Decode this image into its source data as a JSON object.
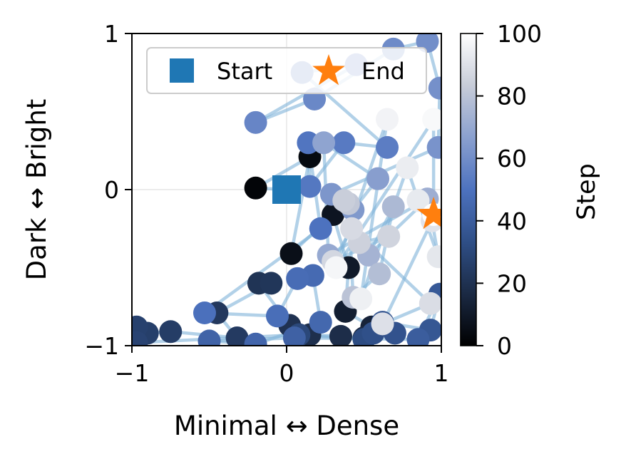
{
  "chart_data": {
    "type": "scatter",
    "xlabel": "Minimal ↔ Dense",
    "ylabel": "Dark ↔ Bright",
    "xlim": [
      -1,
      1
    ],
    "ylim": [
      -1,
      1
    ],
    "xticks": [
      "−1",
      "0",
      "1"
    ],
    "yticks": [
      "−1",
      "0",
      "1"
    ],
    "grid": true,
    "legend": {
      "position": "top-right",
      "entries": [
        {
          "label": "Start",
          "marker": "square",
          "color": "#1f77b4"
        },
        {
          "label": "End",
          "marker": "star",
          "color": "#ff7f0e"
        }
      ]
    },
    "colorbar": {
      "label": "Step",
      "range": [
        0,
        100
      ],
      "ticks": [
        "0",
        "20",
        "40",
        "60",
        "80",
        "100"
      ],
      "colormap": [
        "#000000",
        "#1b2a44",
        "#2f4f87",
        "#4d72bf",
        "#8aa0cf",
        "#c7ccd8",
        "#ffffff"
      ]
    },
    "path_color": "#7fb3d8",
    "start": {
      "x": 0.0,
      "y": 0.0
    },
    "end": {
      "x": 0.95,
      "y": -0.16
    },
    "series": [
      {
        "points": [
          {
            "x": 0.0,
            "y": 0.0,
            "step": 0
          },
          {
            "x": -0.2,
            "y": 0.01,
            "step": 2
          },
          {
            "x": 0.15,
            "y": 0.21,
            "step": 4
          },
          {
            "x": 0.03,
            "y": -0.41,
            "step": 6
          },
          {
            "x": 0.3,
            "y": -0.16,
            "step": 8
          },
          {
            "x": 0.4,
            "y": -0.5,
            "step": 10
          },
          {
            "x": 0.38,
            "y": -0.78,
            "step": 12
          },
          {
            "x": 0.55,
            "y": -0.88,
            "step": 14
          },
          {
            "x": 0.5,
            "y": -0.95,
            "step": 16
          },
          {
            "x": 0.35,
            "y": -0.94,
            "step": 18
          },
          {
            "x": 0.15,
            "y": -0.93,
            "step": 19
          },
          {
            "x": 0.02,
            "y": -0.87,
            "step": 20
          },
          {
            "x": -0.18,
            "y": -0.6,
            "step": 21
          },
          {
            "x": -0.1,
            "y": -0.6,
            "step": 22
          },
          {
            "x": -0.45,
            "y": -0.79,
            "step": 23
          },
          {
            "x": -0.32,
            "y": -0.95,
            "step": 24
          },
          {
            "x": -0.75,
            "y": -0.91,
            "step": 25
          },
          {
            "x": -0.9,
            "y": -0.92,
            "step": 26
          },
          {
            "x": -0.97,
            "y": -0.88,
            "step": 27
          },
          {
            "x": -0.97,
            "y": -0.98,
            "step": 28
          },
          {
            "x": 0.08,
            "y": -0.93,
            "step": 30
          },
          {
            "x": 0.5,
            "y": -0.96,
            "step": 32
          },
          {
            "x": 0.56,
            "y": -0.92,
            "step": 34
          },
          {
            "x": 0.7,
            "y": -0.92,
            "step": 35
          },
          {
            "x": 0.62,
            "y": -0.85,
            "step": 36
          },
          {
            "x": 0.93,
            "y": -0.9,
            "step": 37
          },
          {
            "x": 0.99,
            "y": -0.67,
            "step": 38
          },
          {
            "x": 0.85,
            "y": -0.96,
            "step": 40
          },
          {
            "x": 0.05,
            "y": -0.95,
            "step": 42
          },
          {
            "x": -0.5,
            "y": -0.97,
            "step": 43
          },
          {
            "x": -0.2,
            "y": -0.99,
            "step": 44
          },
          {
            "x": 0.22,
            "y": -0.85,
            "step": 45
          },
          {
            "x": 0.17,
            "y": -0.55,
            "step": 46
          },
          {
            "x": 0.07,
            "y": -0.57,
            "step": 47
          },
          {
            "x": -0.06,
            "y": -0.81,
            "step": 48
          },
          {
            "x": -0.53,
            "y": -0.79,
            "step": 49
          },
          {
            "x": 0.22,
            "y": -0.25,
            "step": 50
          },
          {
            "x": 0.14,
            "y": 0.3,
            "step": 51
          },
          {
            "x": 0.15,
            "y": 0.02,
            "step": 52
          },
          {
            "x": 0.37,
            "y": 0.3,
            "step": 53
          },
          {
            "x": 0.65,
            "y": 0.27,
            "step": 54
          },
          {
            "x": 0.1,
            "y": 0.75,
            "step": 55
          },
          {
            "x": 0.45,
            "y": 0.8,
            "step": 56
          },
          {
            "x": -0.2,
            "y": 0.43,
            "step": 57
          },
          {
            "x": 0.18,
            "y": 0.58,
            "step": 58
          },
          {
            "x": 0.69,
            "y": 0.9,
            "step": 59
          },
          {
            "x": 0.91,
            "y": 0.95,
            "step": 60
          },
          {
            "x": 0.99,
            "y": 0.65,
            "step": 61
          },
          {
            "x": 0.98,
            "y": 0.27,
            "step": 62
          },
          {
            "x": 0.29,
            "y": -0.03,
            "step": 63
          },
          {
            "x": 0.43,
            "y": -0.13,
            "step": 64
          },
          {
            "x": 0.59,
            "y": 0.07,
            "step": 66
          },
          {
            "x": 0.24,
            "y": 0.3,
            "step": 68
          },
          {
            "x": 0.27,
            "y": -0.42,
            "step": 70
          },
          {
            "x": 0.91,
            "y": -0.06,
            "step": 72
          },
          {
            "x": 0.53,
            "y": -0.42,
            "step": 74
          },
          {
            "x": 0.69,
            "y": -0.11,
            "step": 76
          },
          {
            "x": 0.6,
            "y": -0.54,
            "step": 78
          },
          {
            "x": 0.43,
            "y": -0.69,
            "step": 80
          },
          {
            "x": 0.4,
            "y": -0.09,
            "step": 82
          },
          {
            "x": 0.37,
            "y": -0.07,
            "step": 84
          },
          {
            "x": 0.47,
            "y": -0.34,
            "step": 85
          },
          {
            "x": 0.66,
            "y": -0.3,
            "step": 86
          },
          {
            "x": 0.3,
            "y": -0.46,
            "step": 87
          },
          {
            "x": 0.42,
            "y": -0.25,
            "step": 88
          },
          {
            "x": 0.93,
            "y": -0.73,
            "step": 89
          },
          {
            "x": 0.62,
            "y": -0.86,
            "step": 90
          },
          {
            "x": 0.94,
            "y": -0.2,
            "step": 91
          },
          {
            "x": 0.98,
            "y": -0.43,
            "step": 92
          },
          {
            "x": 0.85,
            "y": -0.07,
            "step": 93
          },
          {
            "x": 0.78,
            "y": 0.14,
            "step": 94
          },
          {
            "x": 0.48,
            "y": -0.7,
            "step": 95
          },
          {
            "x": 0.65,
            "y": 0.45,
            "step": 96
          },
          {
            "x": 0.32,
            "y": -0.5,
            "step": 97
          },
          {
            "x": 0.95,
            "y": 0.45,
            "step": 98
          },
          {
            "x": 0.95,
            "y": -0.16,
            "step": 100
          }
        ]
      }
    ]
  }
}
